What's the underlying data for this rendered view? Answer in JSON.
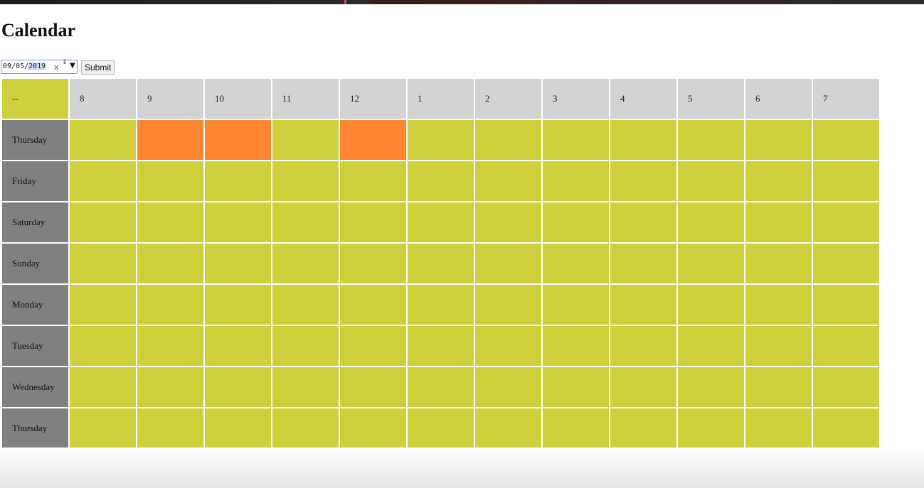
{
  "page": {
    "title": "Calendar"
  },
  "date_picker": {
    "value_prefix": "09/05/",
    "value_selected": "2019",
    "clear": "x",
    "spin": "⇕",
    "drop": "▼"
  },
  "submit": {
    "label": "Submit"
  },
  "calendar": {
    "corner": "--",
    "hours": [
      "8",
      "9",
      "10",
      "11",
      "12",
      "1",
      "2",
      "3",
      "4",
      "5",
      "6",
      "7"
    ],
    "days": [
      "Thursday",
      "Friday",
      "Saturday",
      "Sunday",
      "Monday",
      "Tuesday",
      "Wednesday",
      "Thursday"
    ],
    "booked": [
      [
        1,
        2,
        4
      ],
      [],
      [],
      [],
      [],
      [],
      [],
      []
    ],
    "colors": {
      "slot": "#cdd03a",
      "booked": "#ff8533",
      "day_header": "#808080",
      "hour_header": "#d3d3d3"
    }
  }
}
